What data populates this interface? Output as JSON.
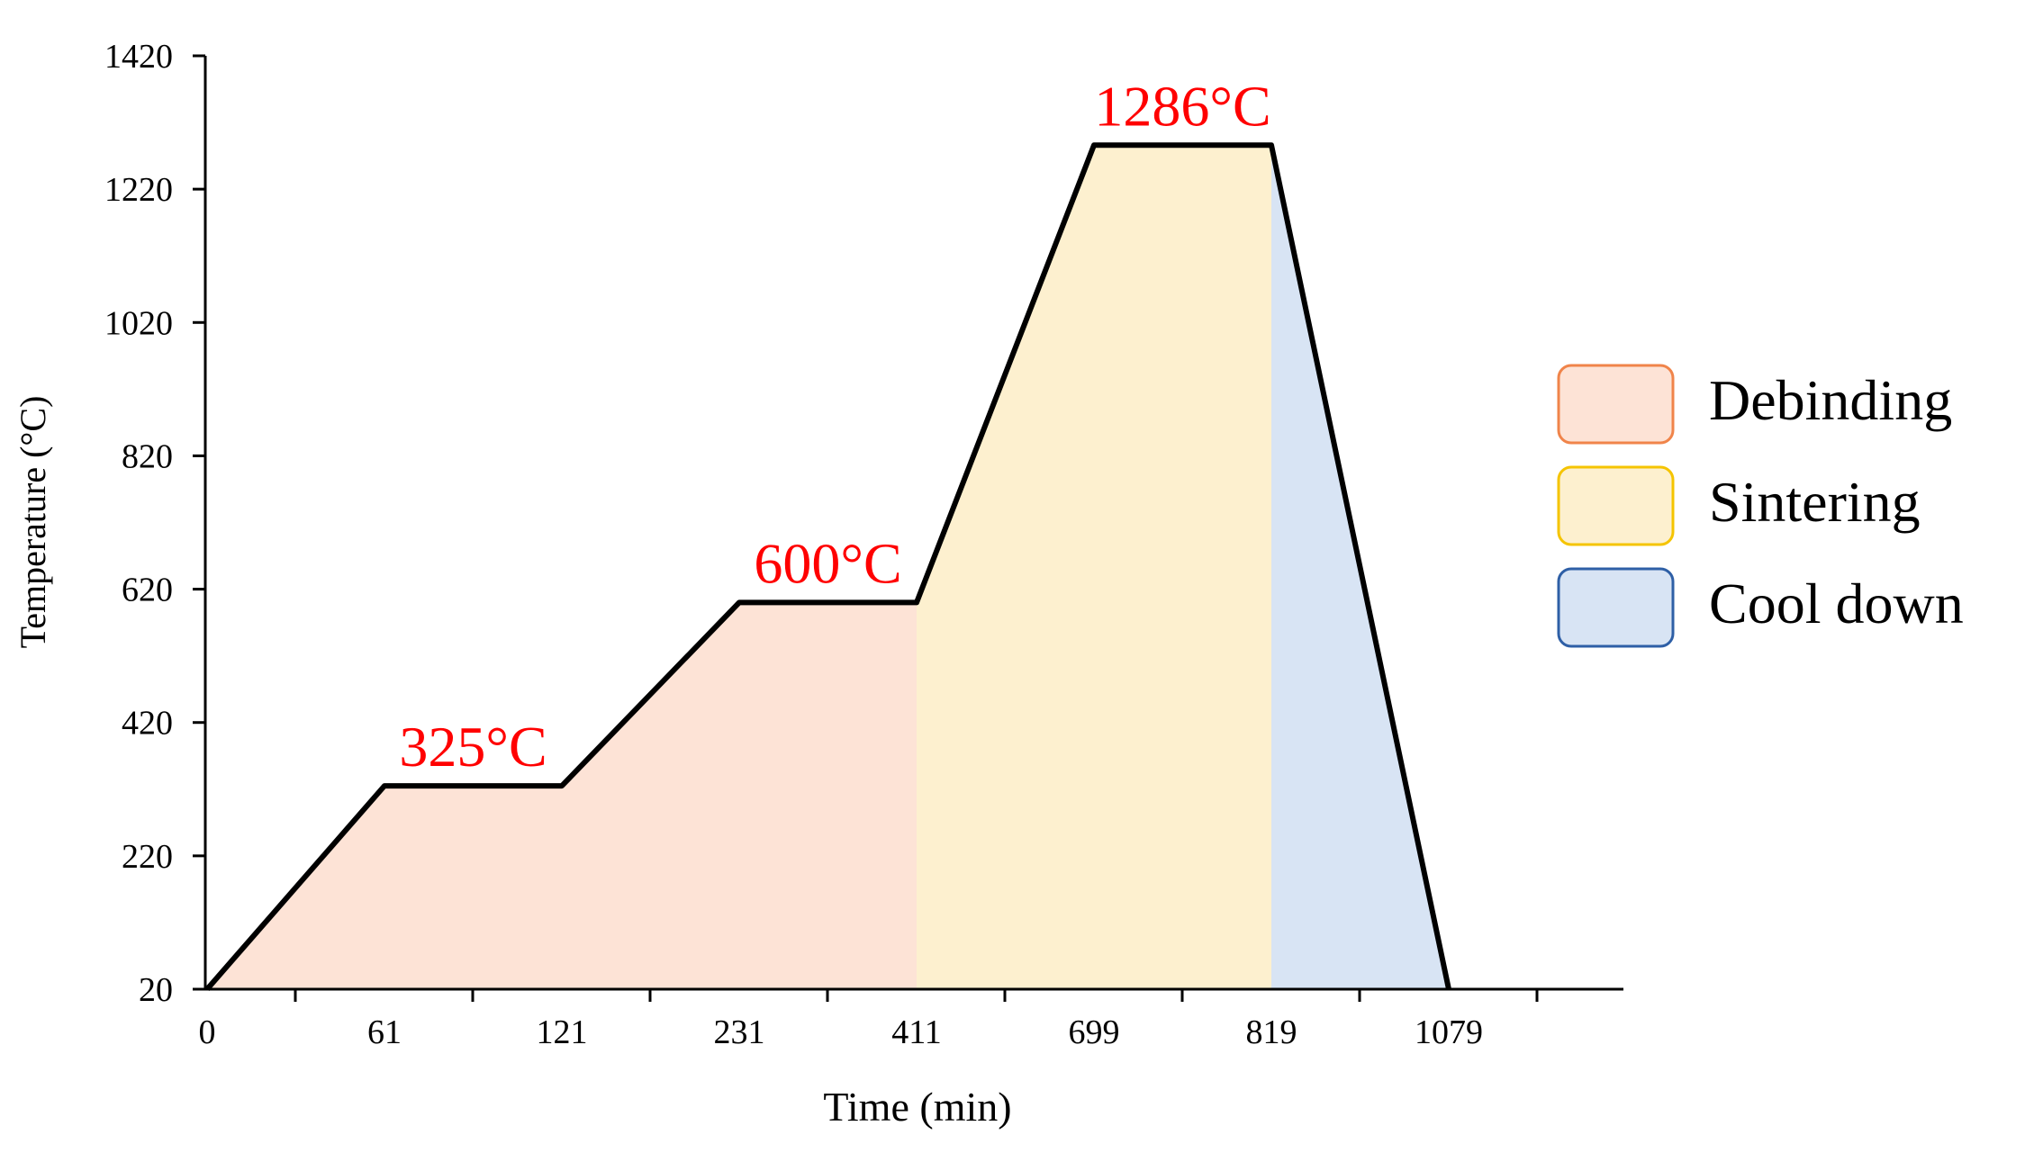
{
  "chart_data": {
    "type": "area",
    "title": "",
    "xlabel": "Time (min)",
    "ylabel": "Temperature (°C)",
    "x_axis_kind": "categorical",
    "categories": [
      "0",
      "61",
      "121",
      "231",
      "411",
      "699",
      "819",
      "1079"
    ],
    "y_ticks": [
      "20",
      "220",
      "420",
      "620",
      "820",
      "1020",
      "1220",
      "1420"
    ],
    "ylim": [
      20,
      1420
    ],
    "series": [
      {
        "values": [
          20,
          325,
          325,
          600,
          600,
          1286,
          1286,
          20
        ],
        "color": "#000000"
      }
    ],
    "phases": [
      {
        "name": "Debinding",
        "from": "0",
        "to": "411",
        "fill": "#fde3d6",
        "border": "#f0844a"
      },
      {
        "name": "Sintering",
        "from": "411",
        "to": "819",
        "fill": "#fdf0cf",
        "border": "#f5c400"
      },
      {
        "name": "Cool down",
        "from": "819",
        "to": "1079",
        "fill": "#d8e4f4",
        "border": "#2e5fa6"
      }
    ],
    "annotations": [
      {
        "text": "325°C",
        "category": "121",
        "value": 325,
        "color": "#ff0000"
      },
      {
        "text": "600°C",
        "category": "411",
        "value": 600,
        "color": "#ff0000"
      },
      {
        "text": "1286°C",
        "category": "819",
        "value": 1286,
        "color": "#ff0000"
      }
    ],
    "legend_position": "right",
    "grid": false
  }
}
